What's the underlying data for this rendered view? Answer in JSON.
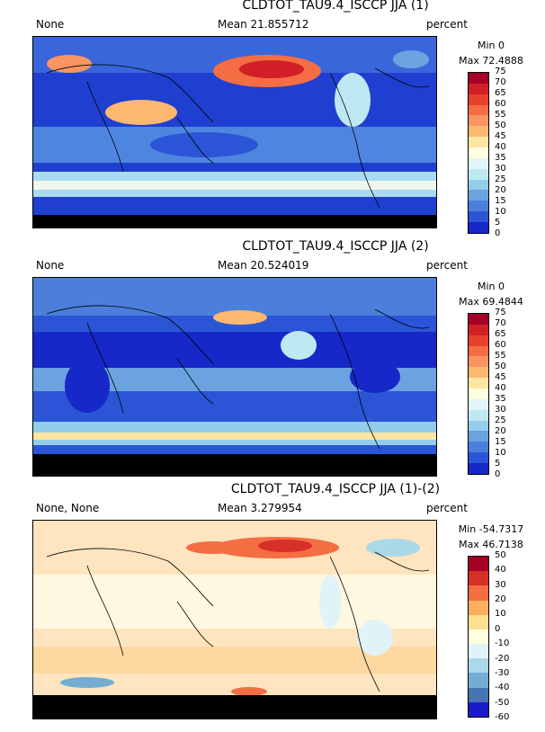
{
  "panels": [
    {
      "title": "CLDTOT_TAU9.4_ISCCP JJA (1)",
      "left_label": "None",
      "mean_label": "Mean 21.855712",
      "units": "percent",
      "min_label": "Min 0",
      "max_label": "Max 72.4888",
      "ticks": [
        "75",
        "70",
        "65",
        "60",
        "55",
        "50",
        "45",
        "40",
        "35",
        "30",
        "25",
        "20",
        "15",
        "10",
        "5",
        "0"
      ],
      "colors": [
        "#a50026",
        "#d21f27",
        "#e8402e",
        "#f46d43",
        "#fa9463",
        "#fdb86f",
        "#fee5a2",
        "#ffffe0",
        "#e3f6f7",
        "#bfe9f2",
        "#94cdea",
        "#6ba3e0",
        "#4b7fdb",
        "#2b55d6",
        "#1628c8"
      ]
    },
    {
      "title": "CLDTOT_TAU9.4_ISCCP JJA (2)",
      "left_label": "None",
      "mean_label": "Mean 20.524019",
      "units": "percent",
      "min_label": "Min 0",
      "max_label": "Max 69.4844",
      "ticks": [
        "75",
        "70",
        "65",
        "60",
        "55",
        "50",
        "45",
        "40",
        "35",
        "30",
        "25",
        "20",
        "15",
        "10",
        "5",
        "0"
      ],
      "colors": [
        "#a50026",
        "#d21f27",
        "#e8402e",
        "#f46d43",
        "#fa9463",
        "#fdb86f",
        "#fee5a2",
        "#ffffe0",
        "#e3f6f7",
        "#bfe9f2",
        "#94cdea",
        "#6ba3e0",
        "#4b7fdb",
        "#2b55d6",
        "#1628c8"
      ]
    },
    {
      "title": "CLDTOT_TAU9.4_ISCCP JJA (1)-(2)",
      "left_label": "None, None",
      "mean_label": "Mean 3.279954",
      "units": "percent",
      "min_label": "Min -54.7317",
      "max_label": "Max 46.7138",
      "ticks": [
        "50",
        "40",
        "30",
        "20",
        "10",
        "0",
        "-10",
        "-20",
        "-30",
        "-40",
        "-50",
        "-60"
      ],
      "colors": [
        "#a50026",
        "#d73027",
        "#f46d43",
        "#fdae61",
        "#fee090",
        "#ffffdf",
        "#e0f3f8",
        "#abd9e9",
        "#74add1",
        "#4575b4",
        "#1a1acd"
      ]
    }
  ]
}
